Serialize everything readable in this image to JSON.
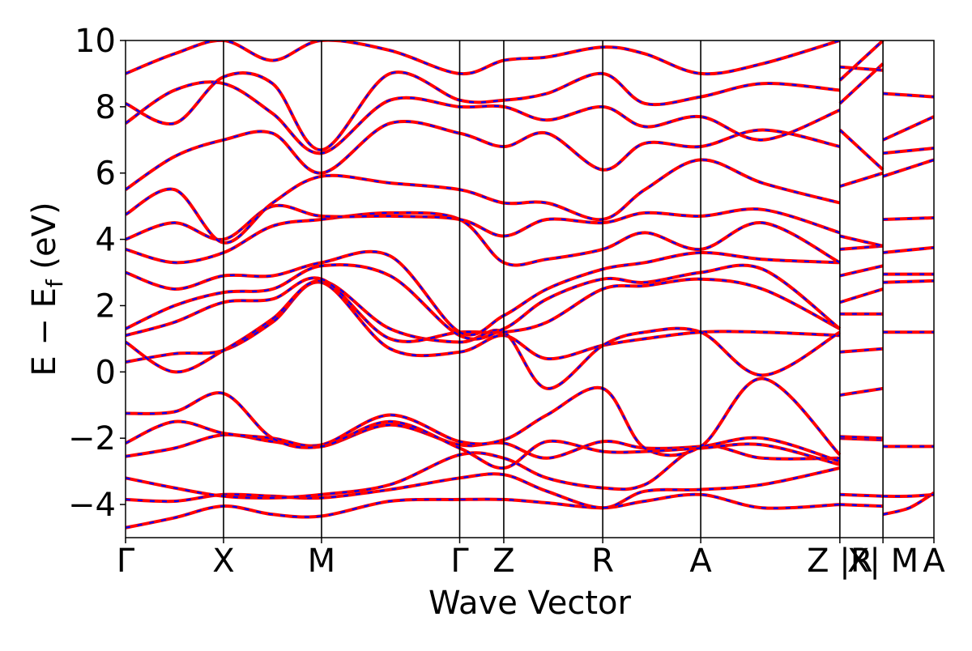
{
  "chart_data": {
    "type": "line",
    "title": "",
    "xlabel": "Wave Vector",
    "ylabel": "E − E_f (eV)",
    "ylabel_parts": {
      "main": "E − E",
      "sub": "f",
      "unit": " (eV)"
    },
    "ylim": [
      -5,
      10
    ],
    "yticks": [
      -4,
      -2,
      0,
      2,
      4,
      6,
      8,
      10
    ],
    "ytick_labels": [
      "−4",
      "−2",
      "0",
      "2",
      "4",
      "6",
      "8",
      "10"
    ],
    "xlim": [
      0,
      8.25
    ],
    "kpoints": [
      {
        "label": "Γ",
        "x": 0.0
      },
      {
        "label": "X",
        "x": 1.0
      },
      {
        "label": "M",
        "x": 2.0
      },
      {
        "label": "Γ",
        "x": 3.41
      },
      {
        "label": "Z",
        "x": 3.86
      },
      {
        "label": "R",
        "x": 4.87
      },
      {
        "label": "A",
        "x": 5.87
      },
      {
        "label": "Z |R",
        "x": 7.29
      },
      {
        "label": "X| M",
        "x": 7.73
      },
      {
        "label": "A",
        "x": 8.25
      }
    ],
    "grid": false,
    "legend": "none",
    "series_styles": [
      {
        "color": "#ff0000",
        "style": "solid"
      },
      {
        "color": "#0000ff",
        "style": "dashed"
      }
    ],
    "bands": [
      [
        [
          0,
          -4.7
        ],
        [
          0.5,
          -4.4
        ],
        [
          1.0,
          -4.05
        ],
        [
          1.5,
          -4.3
        ],
        [
          2.0,
          -4.35
        ],
        [
          2.7,
          -3.9
        ],
        [
          3.41,
          -3.85
        ],
        [
          3.86,
          -3.85
        ],
        [
          4.3,
          -3.95
        ],
        [
          4.87,
          -4.1
        ],
        [
          5.3,
          -3.9
        ],
        [
          5.87,
          -3.7
        ],
        [
          6.5,
          -4.1
        ],
        [
          7.29,
          -4.0
        ],
        [
          7.29,
          -4.0
        ],
        [
          7.73,
          -4.05
        ],
        [
          7.73,
          -4.3
        ],
        [
          8.0,
          -4.1
        ],
        [
          8.25,
          -3.65
        ]
      ],
      [
        [
          0,
          -3.85
        ],
        [
          0.5,
          -3.9
        ],
        [
          1.0,
          -3.7
        ],
        [
          1.5,
          -3.75
        ],
        [
          2.0,
          -3.8
        ],
        [
          2.7,
          -3.55
        ],
        [
          3.41,
          -3.2
        ],
        [
          3.86,
          -3.1
        ],
        [
          4.3,
          -3.6
        ],
        [
          4.87,
          -4.1
        ],
        [
          5.3,
          -3.6
        ],
        [
          5.87,
          -3.55
        ],
        [
          6.5,
          -3.4
        ],
        [
          7.29,
          -2.9
        ],
        [
          7.29,
          -3.7
        ],
        [
          7.73,
          -3.75
        ],
        [
          7.73,
          -3.75
        ],
        [
          8.0,
          -3.75
        ],
        [
          8.25,
          -3.7
        ]
      ],
      [
        [
          0,
          -3.2
        ],
        [
          0.5,
          -3.5
        ],
        [
          1.0,
          -3.75
        ],
        [
          1.5,
          -3.8
        ],
        [
          2.0,
          -3.7
        ],
        [
          2.7,
          -3.4
        ],
        [
          3.41,
          -2.5
        ],
        [
          3.86,
          -2.6
        ],
        [
          4.3,
          -3.2
        ],
        [
          4.87,
          -3.5
        ],
        [
          5.3,
          -3.4
        ],
        [
          5.87,
          -2.25
        ],
        [
          6.5,
          -2.6
        ],
        [
          7.29,
          -2.6
        ],
        [
          7.29,
          -2.0
        ],
        [
          7.73,
          -2.05
        ],
        [
          7.73,
          -2.25
        ],
        [
          8.25,
          -2.25
        ]
      ],
      [
        [
          0,
          -2.55
        ],
        [
          0.5,
          -2.3
        ],
        [
          1.0,
          -1.9
        ],
        [
          1.5,
          -2.1
        ],
        [
          2.0,
          -2.25
        ],
        [
          2.7,
          -1.6
        ],
        [
          3.41,
          -2.2
        ],
        [
          3.86,
          -2.15
        ],
        [
          4.3,
          -2.6
        ],
        [
          4.87,
          -2.1
        ],
        [
          5.3,
          -2.3
        ],
        [
          5.87,
          -2.25
        ],
        [
          6.5,
          -2.0
        ],
        [
          7.29,
          -2.7
        ],
        [
          7.29,
          -1.95
        ],
        [
          7.73,
          -2.0
        ]
      ],
      [
        [
          0,
          -2.15
        ],
        [
          0.5,
          -1.5
        ],
        [
          1.0,
          -1.85
        ],
        [
          1.5,
          -2.0
        ],
        [
          2.0,
          -2.2
        ],
        [
          2.7,
          -1.3
        ],
        [
          3.41,
          -2.1
        ],
        [
          3.86,
          -2.05
        ],
        [
          4.3,
          -1.3
        ],
        [
          4.87,
          -0.5
        ],
        [
          5.3,
          -2.3
        ],
        [
          5.87,
          -2.25
        ],
        [
          6.5,
          -0.2
        ],
        [
          7.29,
          -2.5
        ],
        [
          7.29,
          -0.7
        ],
        [
          7.73,
          -0.5
        ]
      ],
      [
        [
          0,
          -1.25
        ],
        [
          0.5,
          -1.2
        ],
        [
          1.0,
          -0.65
        ],
        [
          1.5,
          -2.0
        ],
        [
          2.0,
          -2.25
        ],
        [
          2.7,
          -1.5
        ],
        [
          3.41,
          -2.3
        ],
        [
          3.86,
          -2.9
        ],
        [
          4.3,
          -2.1
        ],
        [
          4.87,
          -2.4
        ],
        [
          5.3,
          -2.4
        ],
        [
          5.87,
          -2.3
        ],
        [
          6.5,
          -2.2
        ],
        [
          7.29,
          -2.8
        ]
      ],
      [
        [
          0,
          0.3
        ],
        [
          0.5,
          0.55
        ],
        [
          1.0,
          0.65
        ],
        [
          1.5,
          1.5
        ],
        [
          2.0,
          2.7
        ],
        [
          2.7,
          0.7
        ],
        [
          3.41,
          0.6
        ],
        [
          3.86,
          1.1
        ],
        [
          4.3,
          0.4
        ],
        [
          4.87,
          0.8
        ],
        [
          5.3,
          1.0
        ],
        [
          5.87,
          1.2
        ],
        [
          6.5,
          1.2
        ],
        [
          7.29,
          1.1
        ],
        [
          7.29,
          0.6
        ],
        [
          7.73,
          0.7
        ]
      ],
      [
        [
          0,
          0.9
        ],
        [
          0.5,
          0.0
        ],
        [
          1.0,
          0.65
        ],
        [
          1.5,
          1.6
        ],
        [
          2.0,
          2.75
        ],
        [
          2.7,
          1.3
        ],
        [
          3.41,
          0.9
        ],
        [
          3.86,
          1.2
        ],
        [
          4.3,
          -0.5
        ],
        [
          4.87,
          0.8
        ],
        [
          5.3,
          1.2
        ],
        [
          5.87,
          1.2
        ],
        [
          6.5,
          -0.1
        ],
        [
          7.29,
          1.2
        ]
      ],
      [
        [
          0,
          1.1
        ],
        [
          0.5,
          1.5
        ],
        [
          1.0,
          2.1
        ],
        [
          1.5,
          2.2
        ],
        [
          2.0,
          2.8
        ],
        [
          2.7,
          1.0
        ],
        [
          3.41,
          1.2
        ],
        [
          3.86,
          1.2
        ],
        [
          4.3,
          1.5
        ],
        [
          4.87,
          2.5
        ],
        [
          5.3,
          2.6
        ],
        [
          5.87,
          2.8
        ],
        [
          6.5,
          2.5
        ],
        [
          7.29,
          1.3
        ],
        [
          7.29,
          1.75
        ],
        [
          7.73,
          1.75
        ],
        [
          7.73,
          1.2
        ],
        [
          8.25,
          1.2
        ]
      ],
      [
        [
          0,
          1.3
        ],
        [
          0.5,
          2.0
        ],
        [
          1.0,
          2.4
        ],
        [
          1.5,
          2.5
        ],
        [
          2.0,
          3.2
        ],
        [
          2.7,
          2.9
        ],
        [
          3.41,
          1.1
        ],
        [
          3.86,
          1.3
        ],
        [
          4.3,
          2.2
        ],
        [
          4.87,
          2.8
        ],
        [
          5.3,
          2.7
        ],
        [
          5.87,
          3.0
        ],
        [
          6.5,
          3.1
        ],
        [
          7.29,
          1.3
        ],
        [
          7.29,
          2.1
        ],
        [
          7.73,
          2.5
        ],
        [
          7.73,
          2.7
        ],
        [
          8.25,
          2.75
        ]
      ],
      [
        [
          0,
          3.0
        ],
        [
          0.5,
          2.5
        ],
        [
          1.0,
          2.9
        ],
        [
          1.5,
          2.9
        ],
        [
          2.0,
          3.3
        ],
        [
          2.7,
          3.5
        ],
        [
          3.41,
          1.2
        ],
        [
          3.86,
          1.7
        ],
        [
          4.3,
          2.5
        ],
        [
          4.87,
          3.1
        ],
        [
          5.3,
          3.3
        ],
        [
          5.87,
          3.6
        ],
        [
          6.5,
          3.4
        ],
        [
          7.29,
          3.3
        ],
        [
          7.29,
          2.9
        ],
        [
          7.73,
          3.2
        ],
        [
          7.73,
          2.95
        ],
        [
          8.25,
          2.95
        ]
      ],
      [
        [
          0,
          3.7
        ],
        [
          0.5,
          3.3
        ],
        [
          1.0,
          3.6
        ],
        [
          1.5,
          4.4
        ],
        [
          2.0,
          4.6
        ],
        [
          2.7,
          4.8
        ],
        [
          3.41,
          4.6
        ],
        [
          3.86,
          3.3
        ],
        [
          4.3,
          3.4
        ],
        [
          4.87,
          3.7
        ],
        [
          5.3,
          4.2
        ],
        [
          5.87,
          3.7
        ],
        [
          6.5,
          4.5
        ],
        [
          7.29,
          3.3
        ],
        [
          7.29,
          3.7
        ],
        [
          7.73,
          3.8
        ],
        [
          7.73,
          3.6
        ],
        [
          8.25,
          3.75
        ]
      ],
      [
        [
          0,
          4.0
        ],
        [
          0.5,
          4.5
        ],
        [
          1.0,
          4.0
        ],
        [
          1.5,
          5.0
        ],
        [
          2.0,
          4.7
        ],
        [
          2.7,
          4.7
        ],
        [
          3.41,
          4.6
        ],
        [
          3.86,
          4.1
        ],
        [
          4.3,
          4.6
        ],
        [
          4.87,
          4.5
        ],
        [
          5.3,
          4.8
        ],
        [
          5.87,
          4.7
        ],
        [
          6.5,
          4.9
        ],
        [
          7.29,
          4.2
        ],
        [
          7.29,
          4.1
        ],
        [
          7.73,
          3.8
        ],
        [
          7.73,
          4.6
        ],
        [
          8.25,
          4.65
        ]
      ],
      [
        [
          0,
          4.75
        ],
        [
          0.5,
          5.5
        ],
        [
          1.0,
          3.9
        ],
        [
          1.5,
          5.1
        ],
        [
          2.0,
          5.9
        ],
        [
          2.7,
          5.7
        ],
        [
          3.41,
          5.5
        ],
        [
          3.86,
          5.1
        ],
        [
          4.3,
          5.1
        ],
        [
          4.87,
          4.6
        ],
        [
          5.3,
          5.5
        ],
        [
          5.87,
          6.4
        ],
        [
          6.5,
          5.7
        ],
        [
          7.29,
          5.1
        ],
        [
          7.29,
          5.6
        ],
        [
          7.73,
          6.0
        ],
        [
          7.73,
          5.9
        ],
        [
          8.25,
          6.4
        ]
      ],
      [
        [
          0,
          5.5
        ],
        [
          0.5,
          6.5
        ],
        [
          1.0,
          7.0
        ],
        [
          1.5,
          7.2
        ],
        [
          2.0,
          6.0
        ],
        [
          2.7,
          7.5
        ],
        [
          3.41,
          7.2
        ],
        [
          3.86,
          6.8
        ],
        [
          4.3,
          7.2
        ],
        [
          4.87,
          6.1
        ],
        [
          5.3,
          6.9
        ],
        [
          5.87,
          6.8
        ],
        [
          6.5,
          7.3
        ],
        [
          7.29,
          6.8
        ],
        [
          7.29,
          7.3
        ],
        [
          7.73,
          6.1
        ],
        [
          7.73,
          6.6
        ],
        [
          8.25,
          6.75
        ]
      ],
      [
        [
          0,
          7.5
        ],
        [
          0.5,
          8.5
        ],
        [
          1.0,
          8.7
        ],
        [
          1.5,
          7.8
        ],
        [
          2.0,
          6.6
        ],
        [
          2.7,
          8.2
        ],
        [
          3.41,
          8.0
        ],
        [
          3.86,
          8.0
        ],
        [
          4.3,
          7.6
        ],
        [
          4.87,
          8.0
        ],
        [
          5.3,
          7.4
        ],
        [
          5.87,
          7.7
        ],
        [
          6.5,
          7.0
        ],
        [
          7.29,
          7.9
        ],
        [
          7.29,
          8.1
        ],
        [
          7.73,
          9.3
        ],
        [
          7.73,
          7.0
        ],
        [
          8.25,
          7.7
        ]
      ],
      [
        [
          0,
          8.1
        ],
        [
          0.5,
          7.5
        ],
        [
          1.0,
          8.9
        ],
        [
          1.5,
          8.7
        ],
        [
          2.0,
          6.7
        ],
        [
          2.7,
          9.0
        ],
        [
          3.41,
          8.2
        ],
        [
          3.86,
          8.2
        ],
        [
          4.3,
          8.4
        ],
        [
          4.87,
          9.0
        ],
        [
          5.3,
          8.1
        ],
        [
          5.87,
          8.3
        ],
        [
          6.5,
          8.7
        ],
        [
          7.29,
          8.5
        ],
        [
          7.29,
          9.2
        ],
        [
          7.73,
          9.1
        ],
        [
          7.73,
          8.4
        ],
        [
          8.25,
          8.3
        ]
      ],
      [
        [
          0,
          9.0
        ],
        [
          0.5,
          9.6
        ],
        [
          1.0,
          10.0
        ],
        [
          1.5,
          9.4
        ],
        [
          2.0,
          10.0
        ],
        [
          2.7,
          9.7
        ],
        [
          3.41,
          9.0
        ],
        [
          3.86,
          9.4
        ],
        [
          4.3,
          9.5
        ],
        [
          4.87,
          9.8
        ],
        [
          5.3,
          9.6
        ],
        [
          5.87,
          9.0
        ],
        [
          6.5,
          9.3
        ],
        [
          7.29,
          10.0
        ],
        [
          7.29,
          8.8
        ],
        [
          7.73,
          10.0
        ]
      ]
    ]
  }
}
